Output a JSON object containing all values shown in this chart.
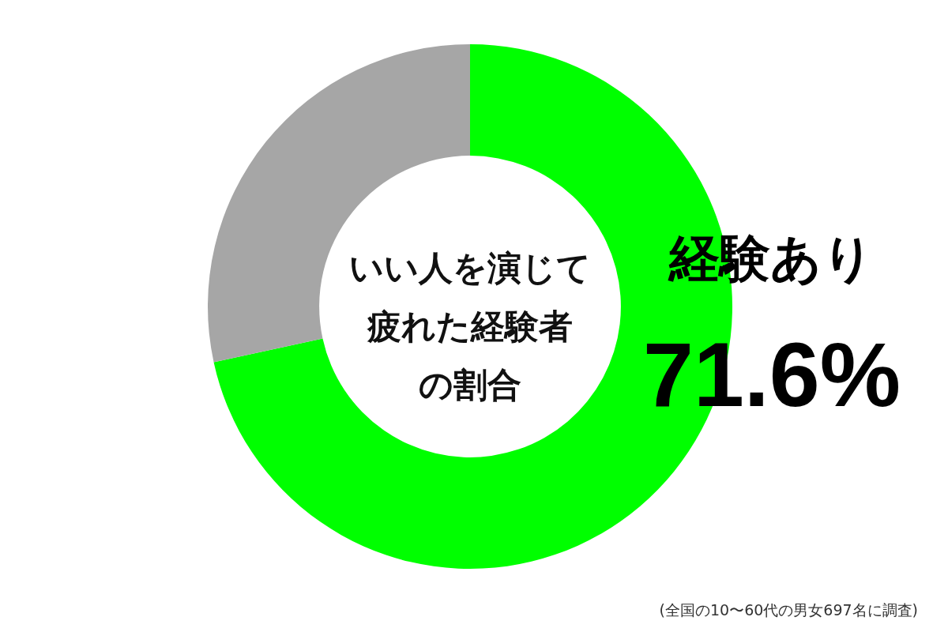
{
  "chart_data": {
    "type": "donut",
    "title": "いい人を演じて疲れた経験者の割合",
    "categories": [
      "経験あり",
      null
    ],
    "values": [
      71.6,
      28.4
    ],
    "colors": [
      "#00ff00",
      "#a6a6a6"
    ],
    "value_labels": [
      "71.6%",
      null
    ],
    "annotations": [
      "(全国の10〜60代の男女697名に調査)"
    ]
  }
}
